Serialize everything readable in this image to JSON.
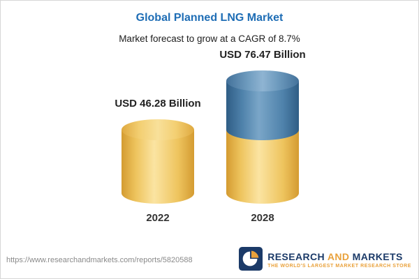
{
  "header": {
    "title": "Global Planned LNG Market",
    "subtitle": "Market forecast to grow at a CAGR of 8.7%"
  },
  "chart_data": {
    "type": "bar",
    "categories": [
      "2022",
      "2028"
    ],
    "values": [
      46.28,
      76.47
    ],
    "value_labels": [
      "USD 46.28 Billion",
      "USD 76.47 Billion"
    ],
    "title": "Global Planned LNG Market",
    "subtitle": "Market forecast to grow at a CAGR of 8.7%",
    "unit": "USD Billion",
    "cagr": "8.7%",
    "ylim": [
      0,
      80
    ],
    "grid": false,
    "legend": "none",
    "colors": {
      "base": "#eec45e",
      "growth": "#4f82ab"
    }
  },
  "footer": {
    "url": "https://www.researchandmarkets.com/reports/5820588",
    "logo": {
      "research": "RESEARCH",
      "and": "AND",
      "markets": "MARKETS",
      "tagline": "THE WORLD'S LARGEST MARKET RESEARCH STORE"
    }
  }
}
